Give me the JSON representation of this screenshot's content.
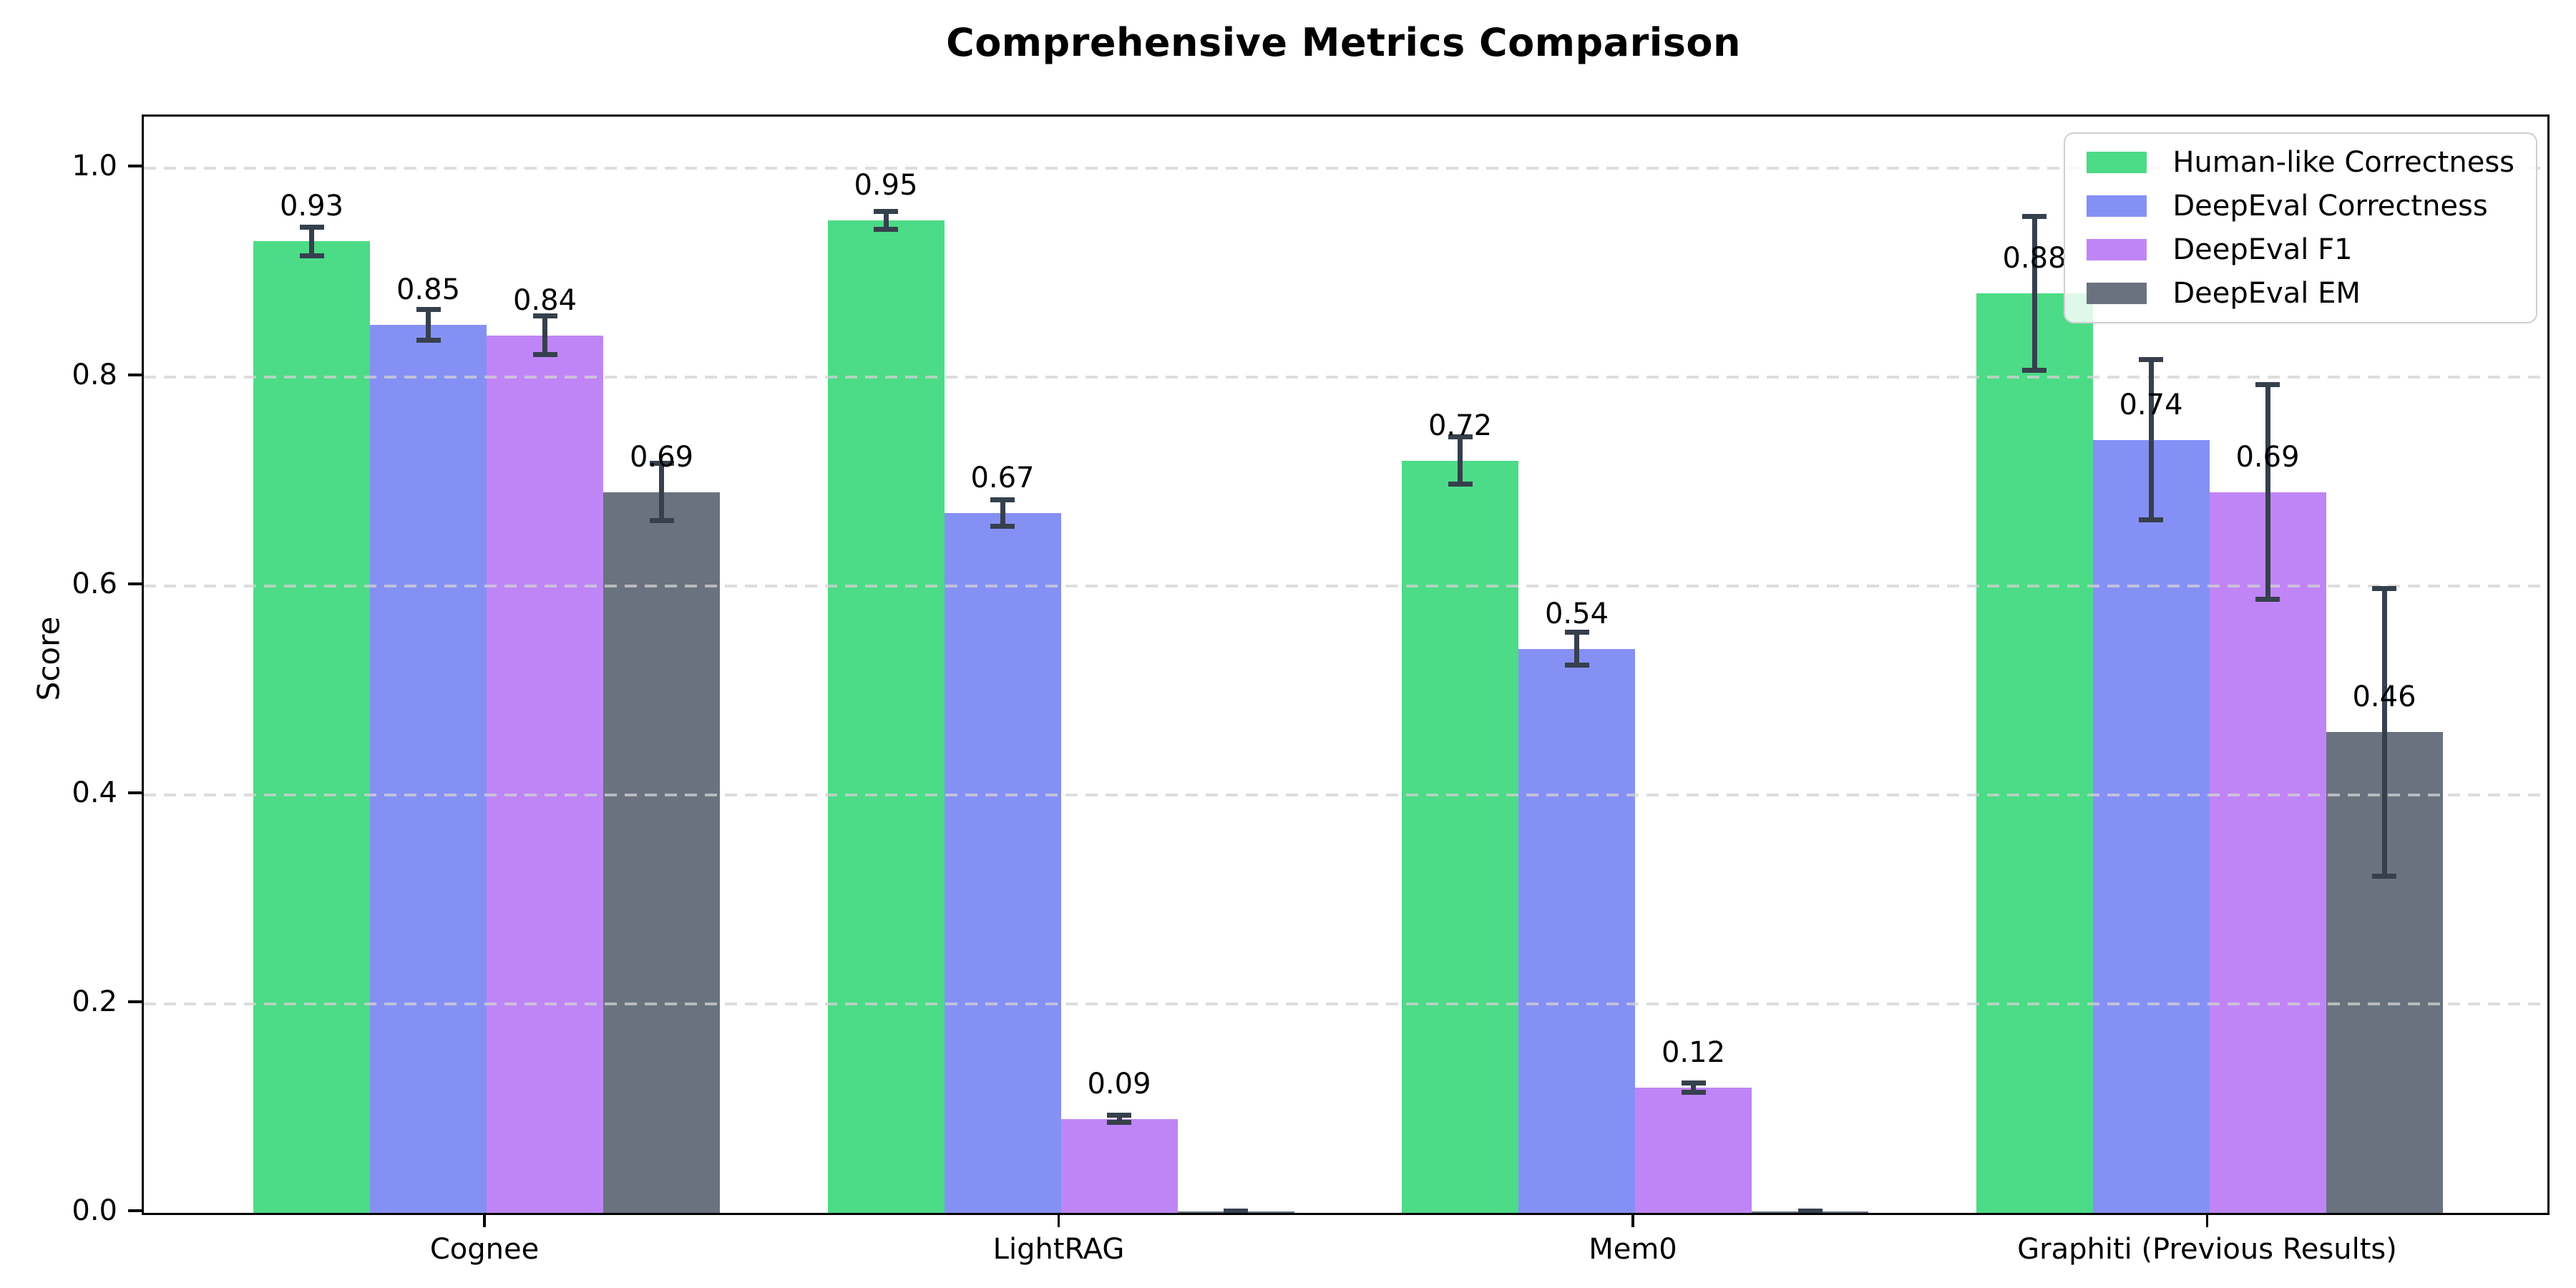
{
  "chart_data": {
    "type": "bar",
    "title": "Comprehensive Metrics Comparison",
    "xlabel": "",
    "ylabel": "Score",
    "ylim": [
      0,
      1.05
    ],
    "yticks": [
      0.0,
      0.2,
      0.4,
      0.6,
      0.8,
      1.0
    ],
    "ytick_labels": [
      "0.0",
      "0.2",
      "0.4",
      "0.6",
      "0.8",
      "1.0"
    ],
    "grid": "horizontal-dashed",
    "grid_color": "#d2d2d2",
    "legend_position": "upper-right",
    "error_bar_color": "#36404d",
    "categories": [
      "Cognee",
      "LightRAG",
      "Mem0",
      "Graphiti (Previous Results)"
    ],
    "series": [
      {
        "name": "Human-like Correctness",
        "color": "#4cdb86",
        "values": [
          0.93,
          0.95,
          0.72,
          0.88
        ],
        "errors": [
          0.016,
          0.011,
          0.025,
          0.076
        ],
        "labels": [
          "0.93",
          "0.95",
          "0.72",
          "0.88"
        ]
      },
      {
        "name": "DeepEval Correctness",
        "color": "#8590f5",
        "values": [
          0.85,
          0.67,
          0.54,
          0.74
        ],
        "errors": [
          0.017,
          0.015,
          0.018,
          0.079
        ],
        "labels": [
          "0.85",
          "0.67",
          "0.54",
          "0.74"
        ]
      },
      {
        "name": "DeepEval F1",
        "color": "#bf85f7",
        "values": [
          0.84,
          0.09,
          0.12,
          0.69
        ],
        "errors": [
          0.021,
          0.006,
          0.007,
          0.105
        ],
        "labels": [
          "0.84",
          "0.09",
          "0.12",
          "0.69"
        ]
      },
      {
        "name": "DeepEval EM",
        "color": "#6a7280",
        "values": [
          0.69,
          0.0,
          0.0,
          0.46
        ],
        "errors": [
          0.03,
          0.004,
          0.004,
          0.14
        ],
        "labels": [
          "0.69",
          "",
          "",
          "0.46"
        ]
      }
    ]
  }
}
